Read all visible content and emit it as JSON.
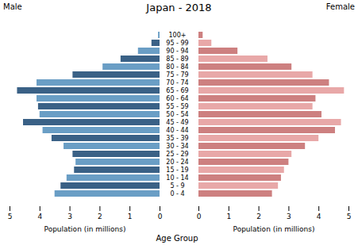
{
  "chart_data": {
    "type": "bar",
    "orientation": "horizontal",
    "title": "Japan - 2018",
    "xlabel": "Population (in millions)",
    "ylabel": "Age Group",
    "categories": [
      "0 - 4",
      "5 - 9",
      "10 - 14",
      "15 - 19",
      "20 - 24",
      "25 - 29",
      "30 - 34",
      "35 - 39",
      "40 - 44",
      "45 - 49",
      "50 - 54",
      "55 - 59",
      "60 - 64",
      "65 - 69",
      "70 - 74",
      "75 - 79",
      "80 - 84",
      "85 - 89",
      "90 - 94",
      "95 - 99",
      "100+"
    ],
    "series": [
      {
        "name": "Male",
        "values": [
          3.5,
          3.3,
          3.1,
          2.85,
          2.8,
          2.9,
          3.2,
          3.6,
          3.9,
          4.55,
          4.0,
          4.05,
          4.1,
          4.75,
          4.1,
          2.9,
          1.9,
          1.3,
          0.72,
          0.27,
          0.05
        ],
        "colors": [
          "#6a9ec5",
          "#3a6186",
          "#6a9ec5",
          "#3a6186",
          "#6a9ec5",
          "#3a6186",
          "#6a9ec5",
          "#3a6186",
          "#6a9ec5",
          "#3a6186",
          "#6a9ec5",
          "#3a6186",
          "#6a9ec5",
          "#3a6186",
          "#6a9ec5",
          "#3a6186",
          "#6a9ec5",
          "#3a6186",
          "#6a9ec5",
          "#3a6186",
          "#6a9ec5"
        ]
      },
      {
        "name": "Female",
        "values": [
          2.45,
          2.65,
          2.75,
          2.85,
          3.0,
          3.1,
          3.55,
          4.0,
          4.55,
          4.75,
          4.1,
          3.8,
          3.9,
          4.85,
          4.35,
          3.8,
          3.1,
          2.3,
          1.3,
          0.43,
          0.14
        ],
        "colors": [
          "#cd8080",
          "#e8a8a8",
          "#cd8080",
          "#e8a8a8",
          "#cd8080",
          "#e8a8a8",
          "#cd8080",
          "#e8a8a8",
          "#cd8080",
          "#e8a8a8",
          "#cd8080",
          "#e8a8a8",
          "#cd8080",
          "#e8a8a8",
          "#cd8080",
          "#e8a8a8",
          "#cd8080",
          "#e8a8a8",
          "#cd8080",
          "#e8a8a8",
          "#cd8080"
        ]
      }
    ],
    "xlim": [
      0,
      5
    ],
    "xticks": [
      0,
      1,
      2,
      3,
      4,
      5
    ]
  }
}
